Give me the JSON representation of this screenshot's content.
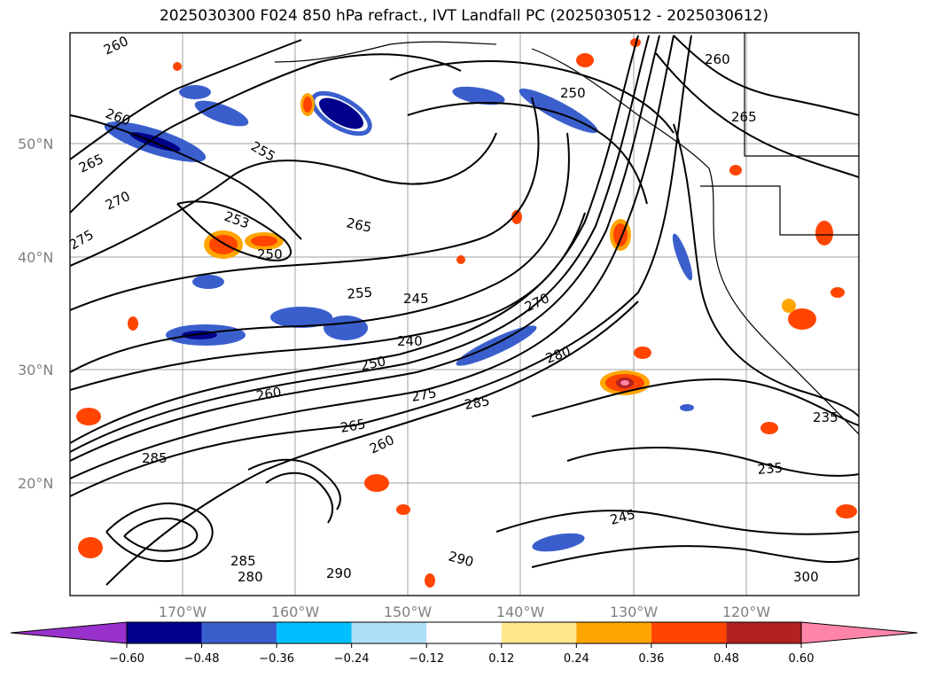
{
  "title": "2025030300 F024 850 hPa refract., IVT Landfall PC (2025030512 - 2025030612)",
  "map": {
    "lat_labels": [
      "50°N",
      "40°N",
      "30°N",
      "20°N"
    ],
    "lon_labels": [
      "170°W",
      "160°W",
      "150°W",
      "140°W",
      "130°W",
      "120°W"
    ],
    "contour_labels": [
      "260",
      "260",
      "260",
      "250",
      "265",
      "255",
      "265",
      "270",
      "253",
      "265",
      "275",
      "250",
      "255",
      "245",
      "240",
      "250",
      "270",
      "260",
      "275",
      "285",
      "280",
      "265",
      "260",
      "285",
      "235",
      "245",
      "290",
      "290",
      "285",
      "280",
      "300",
      "235"
    ]
  },
  "colorbar": {
    "ticks": [
      "−0.60",
      "−0.48",
      "−0.36",
      "−0.24",
      "−0.12",
      "0.12",
      "0.24",
      "0.36",
      "0.48",
      "0.60"
    ],
    "colors": [
      "#9932cc",
      "#00008b",
      "#3a5fcd",
      "#00bfff",
      "#ade0f7",
      "#ffffff",
      "#ffe88c",
      "#ffa500",
      "#ff4500",
      "#b22222",
      "#ff85a8"
    ]
  }
}
